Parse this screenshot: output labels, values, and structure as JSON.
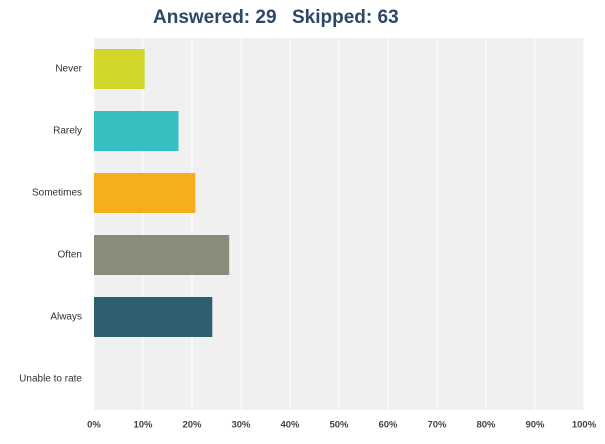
{
  "chart_data": {
    "type": "bar",
    "orientation": "horizontal",
    "title_answered": "Answered: 29",
    "title_skipped": "Skipped: 63",
    "categories": [
      "Never",
      "Rarely",
      "Sometimes",
      "Often",
      "Always",
      "Unable to rate"
    ],
    "values": [
      10.34,
      17.24,
      20.69,
      27.59,
      24.14,
      0
    ],
    "colors": [
      "#d0d72a",
      "#35bfc1",
      "#f5ae1e",
      "#8b8b7a",
      "#2e5f6e",
      "#999999"
    ],
    "xlim": [
      0,
      100
    ],
    "xticks": [
      {
        "value": 0,
        "label": "0%"
      },
      {
        "value": 10,
        "label": "10%"
      },
      {
        "value": 20,
        "label": "20%"
      },
      {
        "value": 30,
        "label": "30%"
      },
      {
        "value": 40,
        "label": "40%"
      },
      {
        "value": 50,
        "label": "50%"
      },
      {
        "value": 60,
        "label": "60%"
      },
      {
        "value": 70,
        "label": "70%"
      },
      {
        "value": 80,
        "label": "80%"
      },
      {
        "value": 90,
        "label": "90%"
      },
      {
        "value": 100,
        "label": "100%"
      }
    ],
    "grid": true
  }
}
